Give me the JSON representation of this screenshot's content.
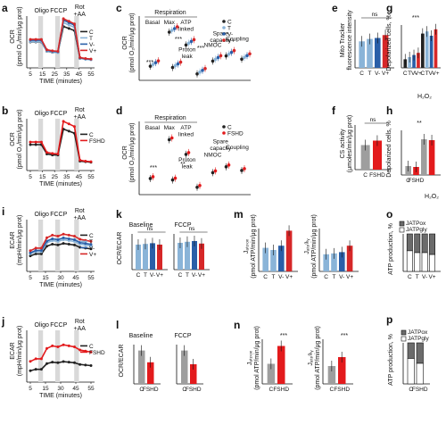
{
  "figure": {
    "panel_letters": [
      "a",
      "b",
      "c",
      "d",
      "e",
      "f",
      "g",
      "h",
      "i",
      "j",
      "k",
      "l",
      "m",
      "n",
      "o",
      "p"
    ],
    "injections": [
      "Oligo",
      "FCCP",
      "Rot\n+AA"
    ],
    "ocr_axis": {
      "ylabel": "OCR\n(pmol O₂/min/μg prot)",
      "xlabel": "TIME (minutes)",
      "xticks": [
        "5",
        "15",
        "25",
        "35",
        "45",
        "55"
      ]
    },
    "ecar_axis": {
      "ylabel": "ECAR\n(mpH/min/μg prot)",
      "xlabel": "TIME (minutes)",
      "xticks": [
        "5",
        "15",
        "30",
        "45",
        "55"
      ]
    },
    "mito_tracker_label": "Mito Tracker\nfluorescence intensity",
    "cs_activity_label": "CS activity\n(μmoles/min/μg prot)",
    "depolarized_label": "Depolarized cells, %",
    "ocr_ecar_label": "OCR/ECAR",
    "jatp_label": "Jₐₜₚₒₓ\n(pmol ATP/min/μg prot)",
    "jatp_gly_label": "Jₐₜₚᵍₗᵧ\n(pmol ATP/min/μg prot)",
    "atp_prod_label": "ATP production, %",
    "h2o2": "H₂O₂",
    "ns": "ns",
    "groups4": [
      "C",
      "T",
      "V-",
      "V+"
    ],
    "groups2": [
      "C",
      "FSHD"
    ],
    "colors": {
      "C": "#222222",
      "T": "#8ab4d8",
      "Vminus": "#2a5fa8",
      "Vplus": "#d62728",
      "FSHD": "#e31a1c",
      "grey": "#9e9e9e",
      "shade": "#d9d9d9",
      "atpox": "#6b6b6b",
      "atpgly": "#ffffff"
    },
    "respiration_labels": {
      "respiration": "Respiration",
      "basal": "Basal",
      "max": "Max",
      "atp": "ATP\nlinked",
      "proton": "Proton\nleak",
      "spare": "Spare\ncapacity",
      "nmoc": "NMOC",
      "coupling": "Coupling"
    },
    "panel_k": {
      "baseline": "Baseline",
      "fccp": "FCCP"
    },
    "panel_o_legend": [
      "JATPox",
      "JATPgly"
    ],
    "stars": {
      "s1": "*",
      "s2": "**",
      "s3": "***"
    }
  }
}
